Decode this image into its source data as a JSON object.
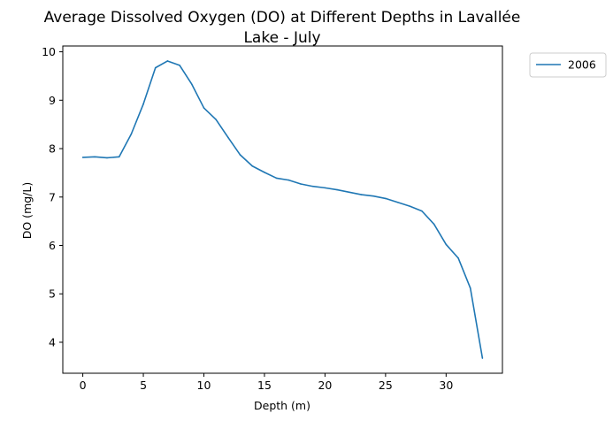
{
  "chart_data": {
    "type": "line",
    "title": "Average Dissolved Oxygen (DO) at Different Depths in Lavallée Lake - July",
    "title_lines": [
      "Average Dissolved Oxygen (DO) at Different Depths in Lavallée",
      "Lake - July"
    ],
    "xlabel": "Depth (m)",
    "ylabel": "DO (mg/L)",
    "xlim": [
      -1.65,
      34.65
    ],
    "ylim": [
      3.36,
      10.12
    ],
    "xticks": [
      0,
      5,
      10,
      15,
      20,
      25,
      30
    ],
    "yticks": [
      4,
      5,
      6,
      7,
      8,
      9,
      10
    ],
    "grid": false,
    "legend_position": "outside-top-right",
    "series": [
      {
        "name": "2006",
        "color": "#1f77b4",
        "x": [
          0,
          1,
          2,
          3,
          4,
          5,
          6,
          7,
          8,
          9,
          10,
          11,
          12,
          13,
          14,
          15,
          16,
          17,
          18,
          19,
          20,
          21,
          22,
          23,
          24,
          25,
          26,
          27,
          28,
          29,
          30,
          31,
          32,
          33
        ],
        "y": [
          7.82,
          7.83,
          7.81,
          7.83,
          8.3,
          8.92,
          9.67,
          9.81,
          9.72,
          9.33,
          8.84,
          8.6,
          8.23,
          7.87,
          7.64,
          7.51,
          7.39,
          7.35,
          7.27,
          7.22,
          7.19,
          7.15,
          7.1,
          7.05,
          7.02,
          6.97,
          6.89,
          6.81,
          6.71,
          6.44,
          6.02,
          5.74,
          5.12,
          3.67
        ]
      }
    ]
  }
}
